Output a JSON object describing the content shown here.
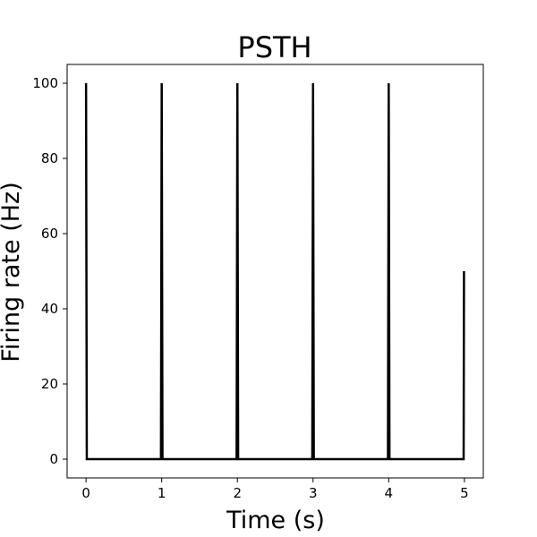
{
  "chart_data": {
    "type": "line",
    "title": "PSTH",
    "xlabel": "Time (s)",
    "ylabel": "Firing rate (Hz)",
    "xlim": [
      -0.25,
      5.25
    ],
    "ylim": [
      -5,
      105
    ],
    "xticks": [
      0,
      1,
      2,
      3,
      4,
      5
    ],
    "yticks": [
      0,
      20,
      40,
      60,
      80,
      100
    ],
    "grid": false,
    "series": [
      {
        "color": "#000000",
        "x": [
          0,
          0.01,
          0.99,
          1.0,
          1.01,
          1.99,
          2.0,
          2.01,
          2.99,
          3.0,
          3.01,
          3.99,
          4.0,
          4.01,
          4.99,
          4.995
        ],
        "values": [
          100,
          0,
          0,
          100,
          0,
          0,
          100,
          0,
          0,
          100,
          0,
          0,
          100,
          0,
          0,
          50
        ]
      }
    ]
  }
}
